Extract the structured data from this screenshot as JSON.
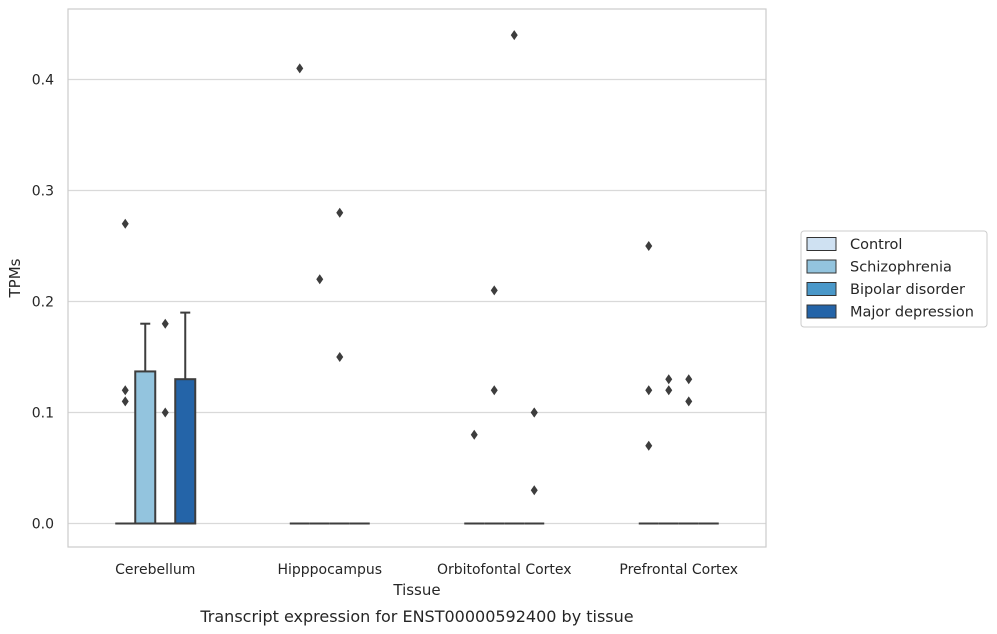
{
  "chart_data": {
    "type": "box",
    "caption": "Transcript expression for ENST00000592400 by tissue",
    "xlabel": "Tissue",
    "ylabel": "TPMs",
    "ylim": [
      -0.022,
      0.465
    ],
    "yticks": [
      0.0,
      0.1,
      0.2,
      0.3,
      0.4
    ],
    "ytick_labels": [
      "0.0",
      "0.1",
      "0.2",
      "0.3",
      "0.4"
    ],
    "grid": "horizontal",
    "legend_position": "right",
    "categories": [
      "Cerebellum",
      "Hipppocampus",
      "Orbitofontal Cortex",
      "Prefrontal Cortex"
    ],
    "series": [
      {
        "name": "Control",
        "color": "#cfe1f2"
      },
      {
        "name": "Schizophrenia",
        "color": "#93c4de"
      },
      {
        "name": "Bipolar disorder",
        "color": "#4a98c9"
      },
      {
        "name": "Major depression",
        "color": "#2464a8"
      }
    ],
    "boxes": [
      {
        "category": 0,
        "series": 0,
        "q1": 0.0,
        "median": 0.0,
        "q3": 0.0,
        "whisker_low": 0.0,
        "whisker_high": 0.0,
        "outliers": [
          0.27,
          0.12,
          0.11
        ]
      },
      {
        "category": 0,
        "series": 1,
        "q1": 0.0,
        "median": 0.0,
        "q3": 0.137,
        "whisker_low": 0.0,
        "whisker_high": 0.18,
        "outliers": []
      },
      {
        "category": 0,
        "series": 2,
        "q1": 0.0,
        "median": 0.0,
        "q3": 0.0,
        "whisker_low": 0.0,
        "whisker_high": 0.0,
        "outliers": [
          0.18,
          0.1
        ]
      },
      {
        "category": 0,
        "series": 3,
        "q1": 0.0,
        "median": 0.0,
        "q3": 0.13,
        "whisker_low": 0.0,
        "whisker_high": 0.19,
        "outliers": []
      },
      {
        "category": 1,
        "series": 0,
        "q1": 0.0,
        "median": 0.0,
        "q3": 0.0,
        "whisker_low": 0.0,
        "whisker_high": 0.0,
        "outliers": [
          0.41
        ]
      },
      {
        "category": 1,
        "series": 1,
        "q1": 0.0,
        "median": 0.0,
        "q3": 0.0,
        "whisker_low": 0.0,
        "whisker_high": 0.0,
        "outliers": [
          0.22
        ]
      },
      {
        "category": 1,
        "series": 2,
        "q1": 0.0,
        "median": 0.0,
        "q3": 0.0,
        "whisker_low": 0.0,
        "whisker_high": 0.0,
        "outliers": [
          0.28,
          0.15
        ]
      },
      {
        "category": 1,
        "series": 3,
        "q1": 0.0,
        "median": 0.0,
        "q3": 0.0,
        "whisker_low": 0.0,
        "whisker_high": 0.0,
        "outliers": []
      },
      {
        "category": 2,
        "series": 0,
        "q1": 0.0,
        "median": 0.0,
        "q3": 0.0,
        "whisker_low": 0.0,
        "whisker_high": 0.0,
        "outliers": [
          0.08
        ]
      },
      {
        "category": 2,
        "series": 1,
        "q1": 0.0,
        "median": 0.0,
        "q3": 0.0,
        "whisker_low": 0.0,
        "whisker_high": 0.0,
        "outliers": [
          0.21,
          0.12
        ]
      },
      {
        "category": 2,
        "series": 2,
        "q1": 0.0,
        "median": 0.0,
        "q3": 0.0,
        "whisker_low": 0.0,
        "whisker_high": 0.0,
        "outliers": [
          0.44
        ]
      },
      {
        "category": 2,
        "series": 3,
        "q1": 0.0,
        "median": 0.0,
        "q3": 0.0,
        "whisker_low": 0.0,
        "whisker_high": 0.0,
        "outliers": [
          0.1,
          0.1,
          0.03
        ]
      },
      {
        "category": 3,
        "series": 0,
        "q1": 0.0,
        "median": 0.0,
        "q3": 0.0,
        "whisker_low": 0.0,
        "whisker_high": 0.0,
        "outliers": [
          0.25,
          0.12,
          0.07
        ]
      },
      {
        "category": 3,
        "series": 1,
        "q1": 0.0,
        "median": 0.0,
        "q3": 0.0,
        "whisker_low": 0.0,
        "whisker_high": 0.0,
        "outliers": [
          0.13,
          0.12
        ]
      },
      {
        "category": 3,
        "series": 2,
        "q1": 0.0,
        "median": 0.0,
        "q3": 0.0,
        "whisker_low": 0.0,
        "whisker_high": 0.0,
        "outliers": [
          0.13,
          0.11
        ]
      },
      {
        "category": 3,
        "series": 3,
        "q1": 0.0,
        "median": 0.0,
        "q3": 0.0,
        "whisker_low": 0.0,
        "whisker_high": 0.0,
        "outliers": []
      }
    ]
  }
}
